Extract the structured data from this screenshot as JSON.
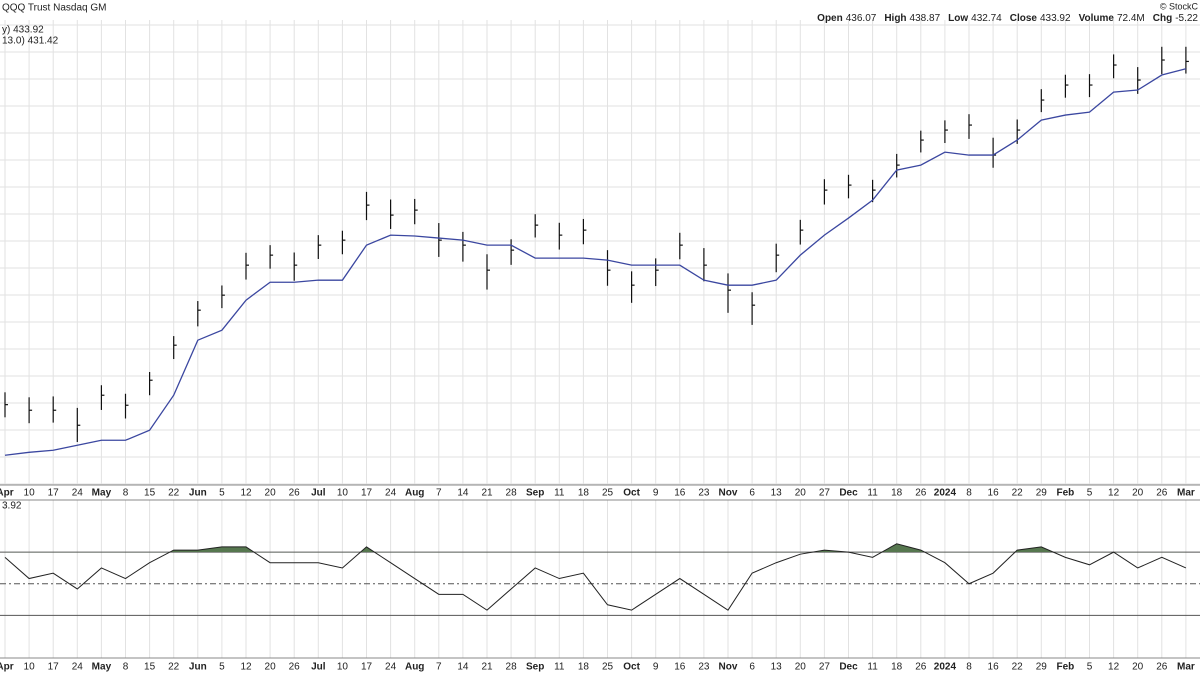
{
  "chart_data": [
    {
      "type": "hlc",
      "title": "QQQ Trust Nasdaq GM",
      "source": "© StockC",
      "quote": [
        {
          "label": "Open",
          "value": 436.07
        },
        {
          "label": "High",
          "value": 438.87
        },
        {
          "label": "Low",
          "value": 432.74
        },
        {
          "label": "Close",
          "value": 433.92
        },
        {
          "label": "Volume",
          "value": "72.4M"
        },
        {
          "label": "Chg",
          "value": -5.22
        }
      ],
      "legend": [
        "y) 433.92",
        "13.0) 431.42"
      ],
      "categories": [
        "Apr",
        "10",
        "17",
        "24",
        "May",
        "8",
        "15",
        "22",
        "Jun",
        "5",
        "12",
        "20",
        "26",
        "Jul",
        "10",
        "17",
        "24",
        "Aug",
        "7",
        "14",
        "21",
        "28",
        "Sep",
        "11",
        "18",
        "25",
        "Oct",
        "9",
        "16",
        "23",
        "Nov",
        "6",
        "13",
        "20",
        "27",
        "Dec",
        "11",
        "18",
        "26",
        "2024",
        "8",
        "16",
        "22",
        "29",
        "Feb",
        "5",
        "12",
        "20",
        "26",
        "Mar"
      ],
      "high": [
        321.5,
        319.8,
        320.1,
        316.2,
        323.9,
        321.0,
        328.4,
        340.6,
        352.5,
        357.8,
        368.9,
        371.5,
        369.0,
        374.9,
        376.4,
        389.6,
        387.0,
        387.2,
        379.0,
        376.0,
        368.4,
        373.5,
        382.0,
        379.1,
        380.4,
        369.8,
        362.6,
        367.0,
        375.7,
        370.5,
        361.9,
        355.5,
        372.0,
        380.1,
        393.9,
        395.4,
        393.7,
        402.5,
        410.4,
        413.9,
        416.0,
        408.0,
        414.2,
        424.5,
        429.4,
        429.6,
        436.3,
        432.0,
        438.9,
        438.9
      ],
      "low": [
        313.0,
        311.0,
        311.2,
        304.6,
        315.5,
        312.6,
        320.5,
        332.8,
        343.9,
        350.1,
        359.8,
        363.5,
        359.4,
        366.8,
        368.4,
        380.0,
        377.0,
        378.6,
        367.5,
        365.9,
        356.4,
        364.8,
        374.1,
        370.0,
        371.8,
        357.7,
        351.9,
        357.6,
        366.7,
        359.2,
        348.5,
        344.4,
        362.3,
        371.7,
        385.3,
        387.4,
        386.1,
        394.5,
        403.0,
        406.2,
        407.6,
        397.8,
        405.9,
        416.7,
        421.6,
        421.8,
        428.2,
        422.9,
        429.6,
        429.8
      ],
      "close": [
        317.3,
        315.4,
        315.4,
        310.3,
        320.5,
        317.1,
        325.6,
        337.5,
        349.4,
        354.5,
        364.7,
        368.1,
        364.7,
        371.5,
        373.2,
        385.1,
        381.7,
        383.4,
        373.2,
        371.5,
        363.0,
        369.8,
        378.3,
        374.9,
        376.6,
        363.0,
        357.9,
        363.0,
        371.5,
        364.7,
        356.2,
        351.1,
        368.1,
        376.6,
        390.2,
        391.9,
        390.2,
        398.7,
        407.2,
        410.6,
        412.3,
        402.1,
        410.6,
        420.8,
        425.9,
        425.9,
        432.7,
        427.6,
        434.4,
        433.92
      ],
      "bar_color": "#111111",
      "series": [
        {
          "color": "#3b47a0",
          "values": [
            300.1,
            301.1,
            301.8,
            303.5,
            305.2,
            305.2,
            308.6,
            320.5,
            339.2,
            342.6,
            352.8,
            358.9,
            358.9,
            359.6,
            359.6,
            371.5,
            374.9,
            374.6,
            373.9,
            373.2,
            371.5,
            371.5,
            367.1,
            367.1,
            367.1,
            366.4,
            364.7,
            364.7,
            364.7,
            359.6,
            357.9,
            357.9,
            359.6,
            368.1,
            374.9,
            380.7,
            386.8,
            397.0,
            398.7,
            403.1,
            402.1,
            402.1,
            407.2,
            414.0,
            415.7,
            416.7,
            423.5,
            424.2,
            429.3,
            431.42
          ]
        }
      ],
      "ylim": [
        290,
        448
      ],
      "grid": true
    },
    {
      "type": "line",
      "title": "3.92",
      "categories": [
        "Apr",
        "10",
        "17",
        "24",
        "May",
        "8",
        "15",
        "22",
        "Jun",
        "5",
        "12",
        "20",
        "26",
        "Jul",
        "10",
        "17",
        "24",
        "Aug",
        "7",
        "14",
        "21",
        "28",
        "Sep",
        "11",
        "18",
        "25",
        "Oct",
        "9",
        "16",
        "23",
        "Nov",
        "6",
        "13",
        "20",
        "27",
        "Dec",
        "11",
        "18",
        "26",
        "2024",
        "8",
        "16",
        "22",
        "29",
        "Feb",
        "5",
        "12",
        "20",
        "26",
        "Mar"
      ],
      "values": [
        66.7,
        53.3,
        56.7,
        46.7,
        60,
        53.3,
        63.3,
        71.3,
        71.3,
        73.3,
        73.3,
        63.3,
        63.3,
        63.3,
        60,
        73.3,
        63.3,
        53.3,
        43.3,
        43.3,
        33.3,
        46.7,
        60,
        53.3,
        56.7,
        36.7,
        33.3,
        43.3,
        53.3,
        43.3,
        33.3,
        56.7,
        63.3,
        68.7,
        71.3,
        70,
        66.7,
        75.3,
        71.3,
        63.3,
        50,
        56.7,
        71.3,
        73.3,
        66.7,
        62,
        70,
        60,
        66.7,
        60
      ],
      "color": "#222222",
      "fill_color": "#56774f",
      "ylim": [
        3,
        103
      ],
      "ref_lines": [
        70,
        50,
        30
      ],
      "grid": true
    }
  ]
}
